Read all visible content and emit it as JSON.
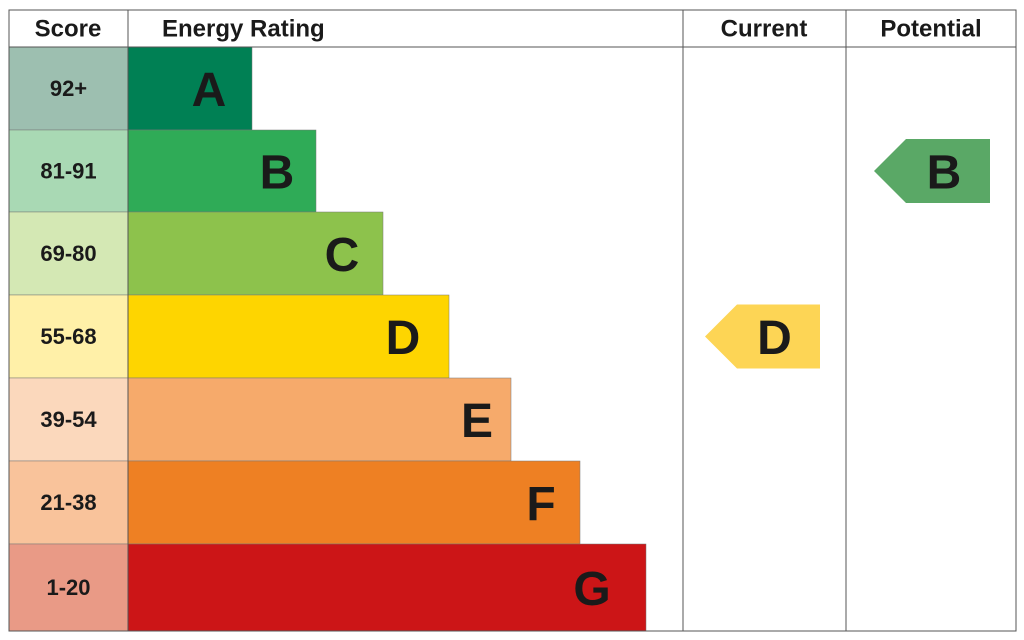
{
  "header": {
    "score": "Score",
    "energy_rating": "Energy Rating",
    "current": "Current",
    "potential": "Potential"
  },
  "rows": [
    {
      "score": "92+",
      "letter": "A",
      "color": "#008054",
      "score_color": "#9dbfb0"
    },
    {
      "score": "81-91",
      "letter": "B",
      "color": "#2fab57",
      "score_color": "#a9d9b4"
    },
    {
      "score": "69-80",
      "letter": "C",
      "color": "#8dc24c",
      "score_color": "#d4e8b4"
    },
    {
      "score": "55-68",
      "letter": "D",
      "color": "#fed500",
      "score_color": "#fff0a8"
    },
    {
      "score": "39-54",
      "letter": "E",
      "color": "#f6aa6b",
      "score_color": "#fbd8bc"
    },
    {
      "score": "21-38",
      "letter": "F",
      "color": "#ee8023",
      "score_color": "#f9c39b"
    },
    {
      "score": "1-20",
      "letter": "G",
      "color": "#cc1517",
      "score_color": "#e99a86"
    }
  ],
  "current": {
    "rating": "D",
    "color": "#fdd555"
  },
  "potential": {
    "rating": "B",
    "color": "#5aa866"
  }
}
